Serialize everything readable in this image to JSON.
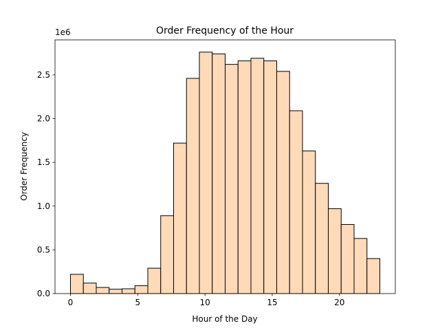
{
  "chart_data": {
    "type": "histogram",
    "title": "Order Frequency of the Hour",
    "xlabel": "Hour of the Day",
    "ylabel": "Order Frequency",
    "y_offset_label": "1e6",
    "bins": [
      0,
      0.9583,
      1.9167,
      2.875,
      3.8333,
      4.7917,
      5.75,
      6.7083,
      7.6667,
      8.625,
      9.5833,
      10.5417,
      11.5,
      12.4583,
      13.4167,
      14.375,
      15.3333,
      16.2917,
      17.25,
      18.2083,
      19.1667,
      20.125,
      21.0833,
      22.0417,
      23
    ],
    "values": [
      0.22,
      0.12,
      0.07,
      0.05,
      0.055,
      0.09,
      0.29,
      0.89,
      1.72,
      2.46,
      2.76,
      2.74,
      2.62,
      2.66,
      2.69,
      2.66,
      2.54,
      2.09,
      1.63,
      1.26,
      0.97,
      0.79,
      0.63,
      0.4
    ],
    "color": "#ffdab9",
    "edgecolor": "#000000",
    "xlim": [
      -1.15,
      24.15
    ],
    "xticks": [
      0,
      5,
      10,
      15,
      20
    ],
    "ylim": [
      0,
      2.9
    ],
    "yticks": [
      {
        "value": 0,
        "label": "0.0"
      },
      {
        "value": 0.5,
        "label": "0.5"
      },
      {
        "value": 1,
        "label": "1.0"
      },
      {
        "value": 1.5,
        "label": "1.5"
      },
      {
        "value": 2,
        "label": "2.0"
      },
      {
        "value": 2.5,
        "label": "2.5"
      }
    ],
    "grid": false
  }
}
